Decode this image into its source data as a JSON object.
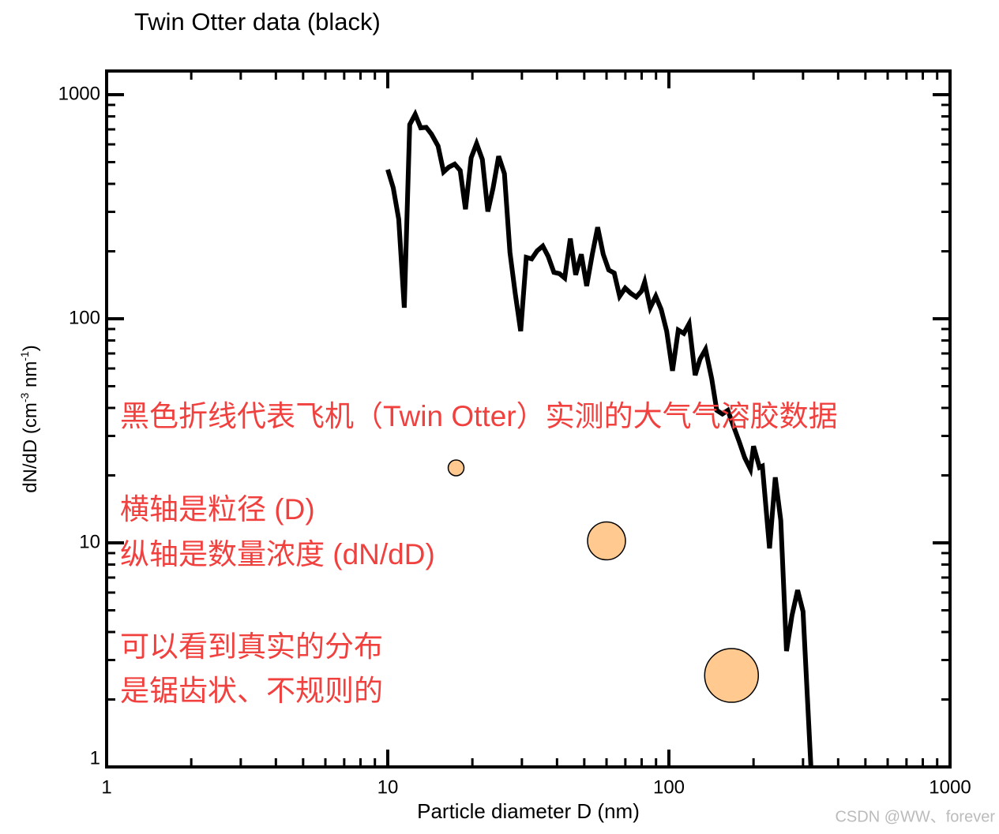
{
  "chart_data": {
    "type": "line",
    "title": "Twin Otter data (black)",
    "xlabel": "Particle diameter D (nm)",
    "ylabel_parts": [
      {
        "text": "dN/dD (cm"
      },
      {
        "text": "-3",
        "sup": true
      },
      {
        "text": " nm"
      },
      {
        "text": "-1",
        "sup": true
      },
      {
        "text": ")"
      }
    ],
    "log_x": true,
    "log_y": true,
    "xlim": [
      1,
      1000
    ],
    "ylim": [
      1,
      1275
    ],
    "xticks": [
      1,
      10,
      100,
      1000
    ],
    "yticks": [
      1,
      10,
      100,
      1000
    ],
    "xminorticks": [
      2,
      3,
      4,
      5,
      6,
      7,
      8,
      9,
      20,
      30,
      40,
      50,
      60,
      70,
      80,
      90,
      200,
      300,
      400,
      500,
      600,
      700,
      800,
      900
    ],
    "yminorticks": [
      2,
      3,
      4,
      5,
      6,
      7,
      8,
      9,
      20,
      30,
      40,
      50,
      60,
      70,
      80,
      90,
      200,
      300,
      400,
      500,
      600,
      700,
      800,
      900
    ],
    "series": [
      {
        "type": "line",
        "color": "#000000",
        "x": [
          10,
          10.46,
          10.94,
          11.45,
          11.97,
          12.52,
          13.1,
          13.7,
          14.3,
          15.1,
          15.8,
          16.5,
          17.3,
          18.1,
          18.9,
          19.8,
          20.7,
          21.7,
          22.7,
          23.7,
          24.8,
          26.0,
          27.2,
          28.4,
          29.7,
          31.1,
          32.5,
          34.0,
          35.6,
          37.2,
          39.0,
          40.8,
          42.6,
          44.6,
          46.6,
          48.8,
          51.0,
          53.4,
          55.8,
          58.4,
          61.1,
          63.9,
          66.8,
          69.9,
          73.1,
          76.5,
          80.0,
          82.0,
          85.8,
          89.8,
          93.9,
          98.2,
          103,
          108,
          113,
          118,
          124,
          129,
          135,
          142,
          148,
          155,
          162,
          170,
          178,
          186,
          195,
          200,
          210,
          215,
          228,
          239,
          250,
          262,
          274,
          287,
          300,
          320
        ],
        "values": [
          463,
          384,
          278,
          112,
          735,
          817,
          711,
          715,
          667,
          590,
          452,
          475,
          490,
          459,
          308,
          523,
          605,
          514,
          301,
          384,
          531,
          444,
          198,
          130,
          88,
          188,
          185,
          201,
          211,
          190,
          161,
          159,
          152,
          228,
          157,
          194,
          140,
          194,
          256,
          194,
          165,
          160,
          126,
          137,
          130,
          125,
          133,
          146,
          112,
          126,
          110,
          88,
          58.6,
          89,
          86,
          95,
          56,
          66,
          73,
          54,
          39,
          37.6,
          39,
          33,
          28.2,
          24,
          21.3,
          27,
          21.7,
          22,
          9.45,
          19.6,
          12.6,
          3.29,
          4.74,
          6.15,
          4.94,
          1
        ]
      },
      {
        "type": "scatter",
        "color": "#ffc98f",
        "x": [
          17.5,
          60,
          167
        ],
        "values": [
          21.6,
          10.2,
          2.56
        ],
        "sizes": [
          10,
          24,
          34
        ]
      }
    ],
    "annotations": [
      "黑色折线代表飞机（Twin Otter）实测的大气气溶胶数据",
      "横轴是粒径 (D)",
      "纵轴是数量浓度 (dN/dD)",
      "可以看到真实的分布",
      "是锯齿状、不规则的"
    ],
    "annotation_color": "#f0413f",
    "watermark": "CSDN @WW、forever"
  }
}
